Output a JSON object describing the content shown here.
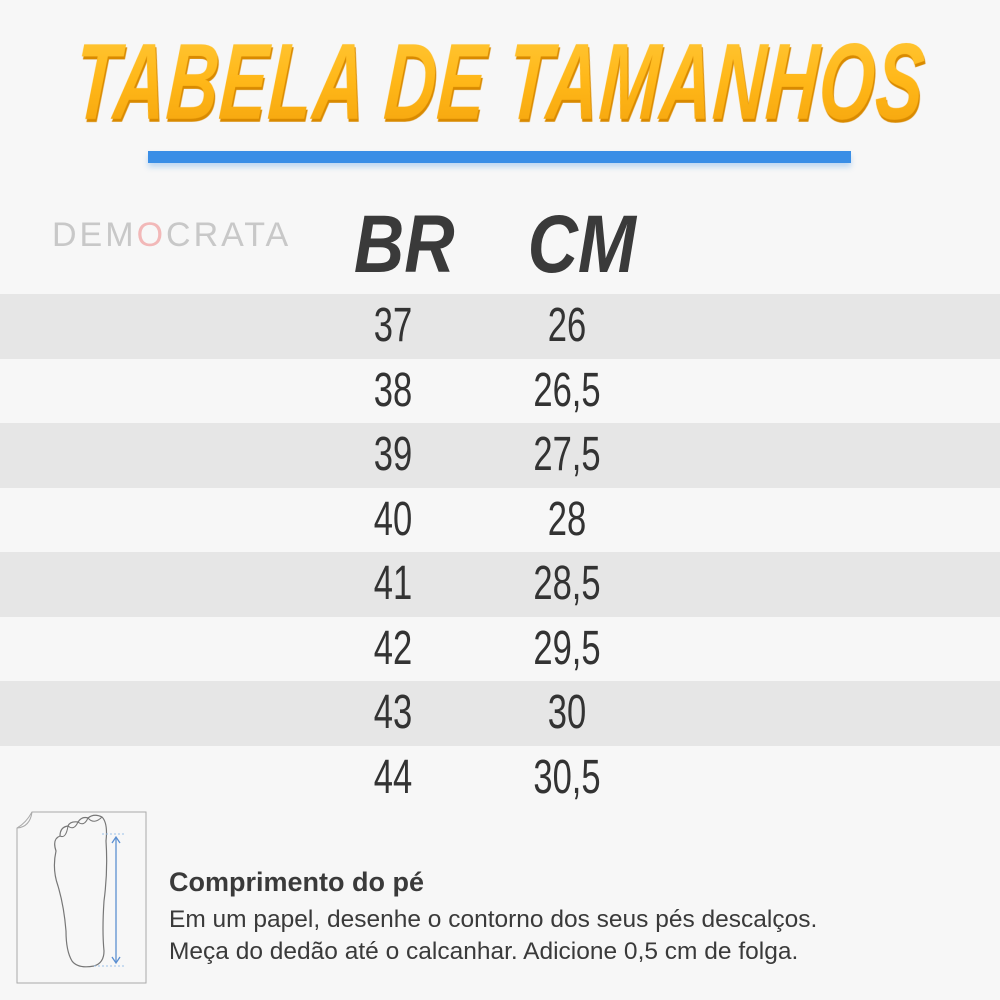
{
  "title": "TABELA DE TAMANHOS",
  "brand": {
    "pre": "DEM",
    "o": "O",
    "post": "CRATA",
    "text": "DEMOCRATA"
  },
  "columns": [
    "BR",
    "CM"
  ],
  "rows": [
    {
      "br": "37",
      "cm": "26"
    },
    {
      "br": "38",
      "cm": "26,5"
    },
    {
      "br": "39",
      "cm": "27,5"
    },
    {
      "br": "40",
      "cm": "28"
    },
    {
      "br": "41",
      "cm": "28,5"
    },
    {
      "br": "42",
      "cm": "29,5"
    },
    {
      "br": "43",
      "cm": "30"
    },
    {
      "br": "44",
      "cm": "30,5"
    }
  ],
  "help": {
    "title": "Comprimento do pé",
    "line1": "Em um papel, desenhe o contorno dos seus pés descalços.",
    "line2": "Meça do dedão até o calcanhar. Adicione 0,5 cm de folga."
  },
  "colors": {
    "title": "#fbb416",
    "bar": "#3a8ee6",
    "text": "#333333",
    "stripe": "#e6e6e6"
  },
  "icons": [
    "foot-outline-icon",
    "measure-arrow-icon"
  ]
}
